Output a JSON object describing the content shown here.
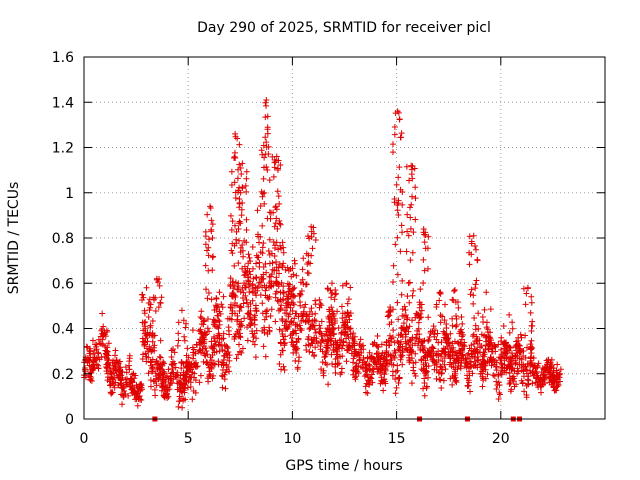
{
  "chart_data": {
    "type": "scatter",
    "title": "Day 290 of 2025, SRMTID for receiver picl",
    "xlabel": "GPS time / hours",
    "ylabel": "SRMTID / TECUs",
    "xlim": [
      0,
      25
    ],
    "ylim": [
      0,
      1.6
    ],
    "xticks": [
      "0",
      "5",
      "10",
      "15",
      "20"
    ],
    "yticks": [
      "0",
      "0.2",
      "0.4",
      "0.6",
      "0.8",
      "1",
      "1.2",
      "1.4",
      "1.6"
    ],
    "grid": true,
    "marker": "plus",
    "color": "#e00000",
    "bands": [
      {
        "t0": 0.0,
        "t1": 0.4,
        "base": 0.22,
        "amp": 0.12
      },
      {
        "t0": 0.4,
        "t1": 1.2,
        "base": 0.32,
        "amp": 0.15
      },
      {
        "t0": 1.2,
        "t1": 2.2,
        "base": 0.18,
        "amp": 0.1
      },
      {
        "t0": 2.2,
        "t1": 2.8,
        "base": 0.14,
        "amp": 0.07
      },
      {
        "t0": 2.8,
        "t1": 3.4,
        "base": 0.32,
        "amp": 0.16
      },
      {
        "t0": 3.4,
        "t1": 4.2,
        "base": 0.18,
        "amp": 0.1
      },
      {
        "t0": 4.2,
        "t1": 5.2,
        "base": 0.18,
        "amp": 0.12
      },
      {
        "t0": 5.2,
        "t1": 6.0,
        "base": 0.3,
        "amp": 0.18
      },
      {
        "t0": 6.0,
        "t1": 7.0,
        "base": 0.32,
        "amp": 0.18
      },
      {
        "t0": 7.0,
        "t1": 7.5,
        "base": 0.5,
        "amp": 0.25
      },
      {
        "t0": 7.5,
        "t1": 8.3,
        "base": 0.5,
        "amp": 0.25
      },
      {
        "t0": 8.3,
        "t1": 9.6,
        "base": 0.6,
        "amp": 0.35
      },
      {
        "t0": 9.6,
        "t1": 11.0,
        "base": 0.45,
        "amp": 0.22
      },
      {
        "t0": 11.0,
        "t1": 13.0,
        "base": 0.35,
        "amp": 0.18
      },
      {
        "t0": 13.0,
        "t1": 14.5,
        "base": 0.25,
        "amp": 0.12
      },
      {
        "t0": 14.5,
        "t1": 15.4,
        "base": 0.32,
        "amp": 0.2
      },
      {
        "t0": 15.4,
        "t1": 16.5,
        "base": 0.32,
        "amp": 0.18
      },
      {
        "t0": 16.5,
        "t1": 18.3,
        "base": 0.28,
        "amp": 0.14
      },
      {
        "t0": 18.3,
        "t1": 19.5,
        "base": 0.28,
        "amp": 0.14
      },
      {
        "t0": 19.5,
        "t1": 20.5,
        "base": 0.25,
        "amp": 0.14
      },
      {
        "t0": 20.5,
        "t1": 21.5,
        "base": 0.25,
        "amp": 0.15
      },
      {
        "t0": 21.5,
        "t1": 22.9,
        "base": 0.2,
        "amp": 0.08
      }
    ],
    "spikes": [
      {
        "t": 3.0,
        "ymax": 0.58
      },
      {
        "t": 3.5,
        "ymax": 0.62
      },
      {
        "t": 4.7,
        "ymax": 0.48
      },
      {
        "t": 6.05,
        "ymax": 0.94
      },
      {
        "t": 6.5,
        "ymax": 0.56
      },
      {
        "t": 7.25,
        "ymax": 1.26
      },
      {
        "t": 7.6,
        "ymax": 1.13
      },
      {
        "t": 8.1,
        "ymax": 0.76
      },
      {
        "t": 8.75,
        "ymax": 1.41
      },
      {
        "t": 9.25,
        "ymax": 1.16
      },
      {
        "t": 10.1,
        "ymax": 0.7
      },
      {
        "t": 10.9,
        "ymax": 0.85
      },
      {
        "t": 11.9,
        "ymax": 0.6
      },
      {
        "t": 12.6,
        "ymax": 0.6
      },
      {
        "t": 15.05,
        "ymax": 1.36
      },
      {
        "t": 15.7,
        "ymax": 1.12
      },
      {
        "t": 16.3,
        "ymax": 0.84
      },
      {
        "t": 17.1,
        "ymax": 0.56
      },
      {
        "t": 17.8,
        "ymax": 0.57
      },
      {
        "t": 18.7,
        "ymax": 0.81
      },
      {
        "t": 19.3,
        "ymax": 0.56
      },
      {
        "t": 20.4,
        "ymax": 0.46
      },
      {
        "t": 21.3,
        "ymax": 0.58
      }
    ],
    "zero_markers": [
      3.4,
      16.1,
      18.4,
      20.6,
      20.9
    ]
  }
}
